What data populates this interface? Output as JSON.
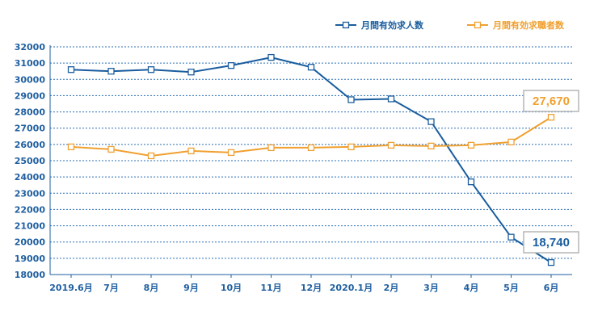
{
  "chart_data": {
    "type": "line",
    "categories": [
      "2019.6月",
      "7月",
      "8月",
      "9月",
      "10月",
      "11月",
      "12月",
      "2020.1月",
      "2月",
      "3月",
      "4月",
      "5月",
      "6月"
    ],
    "ylim": [
      18000,
      32000
    ],
    "yticks": [
      18000,
      19000,
      20000,
      21000,
      22000,
      23000,
      24000,
      25000,
      26000,
      27000,
      28000,
      29000,
      30000,
      31000,
      32000
    ],
    "grid": true,
    "legend_position": "top-right",
    "series": [
      {
        "name": "月間有効求人数",
        "color": "#1a5d9e",
        "values": [
          30600,
          30500,
          30600,
          30450,
          30850,
          31350,
          30750,
          28750,
          28800,
          27400,
          23700,
          20300,
          18740
        ]
      },
      {
        "name": "月間有効求職者数",
        "color": "#f0a030",
        "values": [
          25850,
          25700,
          25300,
          25600,
          25500,
          25800,
          25800,
          25850,
          25950,
          25900,
          25950,
          26150,
          27670
        ]
      }
    ],
    "annotations": [
      {
        "series": 1,
        "index": 12,
        "text": "27,670"
      },
      {
        "series": 0,
        "index": 12,
        "text": "18,740"
      }
    ]
  }
}
